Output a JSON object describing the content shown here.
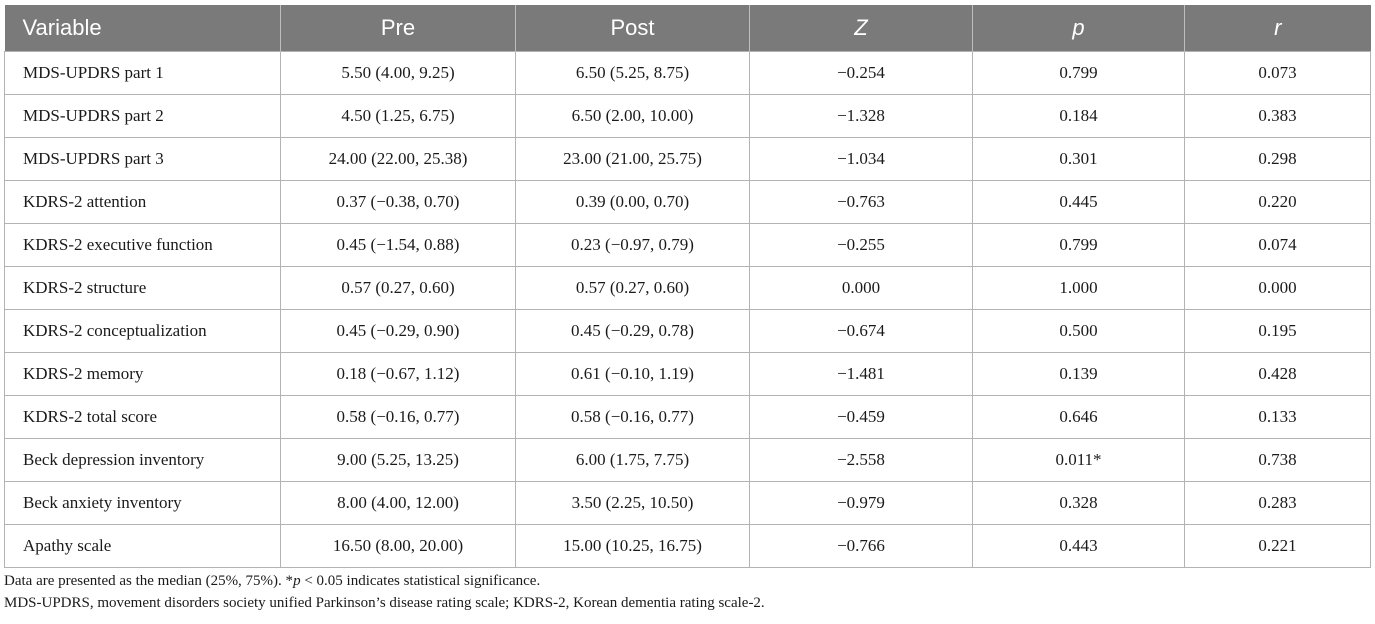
{
  "table": {
    "headers": {
      "variable": "Variable",
      "pre": "Pre",
      "post": "Post",
      "z": "Z",
      "p": "p",
      "r": "r"
    },
    "rows": [
      {
        "variable": "MDS-UPDRS part 1",
        "pre": "5.50 (4.00, 9.25)",
        "post": "6.50 (5.25, 8.75)",
        "z": "−0.254",
        "p": "0.799",
        "r": "0.073"
      },
      {
        "variable": "MDS-UPDRS part 2",
        "pre": "4.50 (1.25, 6.75)",
        "post": "6.50 (2.00, 10.00)",
        "z": "−1.328",
        "p": "0.184",
        "r": "0.383"
      },
      {
        "variable": "MDS-UPDRS part 3",
        "pre": "24.00 (22.00, 25.38)",
        "post": "23.00 (21.00, 25.75)",
        "z": "−1.034",
        "p": "0.301",
        "r": "0.298"
      },
      {
        "variable": "KDRS-2 attention",
        "pre": "0.37 (−0.38, 0.70)",
        "post": "0.39 (0.00, 0.70)",
        "z": "−0.763",
        "p": "0.445",
        "r": "0.220"
      },
      {
        "variable": "KDRS-2 executive function",
        "pre": "0.45 (−1.54, 0.88)",
        "post": "0.23 (−0.97, 0.79)",
        "z": "−0.255",
        "p": "0.799",
        "r": "0.074"
      },
      {
        "variable": "KDRS-2 structure",
        "pre": "0.57 (0.27, 0.60)",
        "post": "0.57 (0.27, 0.60)",
        "z": "0.000",
        "p": "1.000",
        "r": "0.000"
      },
      {
        "variable": "KDRS-2 conceptualization",
        "pre": "0.45 (−0.29, 0.90)",
        "post": "0.45 (−0.29, 0.78)",
        "z": "−0.674",
        "p": "0.500",
        "r": "0.195"
      },
      {
        "variable": "KDRS-2 memory",
        "pre": "0.18 (−0.67, 1.12)",
        "post": "0.61 (−0.10, 1.19)",
        "z": "−1.481",
        "p": "0.139",
        "r": "0.428"
      },
      {
        "variable": "KDRS-2 total score",
        "pre": "0.58 (−0.16, 0.77)",
        "post": "0.58 (−0.16, 0.77)",
        "z": "−0.459",
        "p": "0.646",
        "r": "0.133"
      },
      {
        "variable": "Beck depression inventory",
        "pre": "9.00 (5.25, 13.25)",
        "post": "6.00 (1.75, 7.75)",
        "z": "−2.558",
        "p": "0.011*",
        "r": "0.738"
      },
      {
        "variable": "Beck anxiety inventory",
        "pre": "8.00 (4.00, 12.00)",
        "post": "3.50 (2.25, 10.50)",
        "z": "−0.979",
        "p": "0.328",
        "r": "0.283"
      },
      {
        "variable": "Apathy scale",
        "pre": "16.50 (8.00, 20.00)",
        "post": "15.00 (10.25, 16.75)",
        "z": "−0.766",
        "p": "0.443",
        "r": "0.221"
      }
    ]
  },
  "footnotes": {
    "line1_before": "Data are presented as the median (25%, 75%). *",
    "line1_p": "p",
    "line1_after": " < 0.05 indicates statistical significance.",
    "line2": "MDS-UPDRS, movement disorders society unified Parkinson’s disease rating scale; KDRS-2, Korean dementia rating scale-2."
  },
  "colors": {
    "header_bg": "#7a7a7a",
    "header_text": "#ffffff",
    "grid": "#b3b3b3"
  }
}
